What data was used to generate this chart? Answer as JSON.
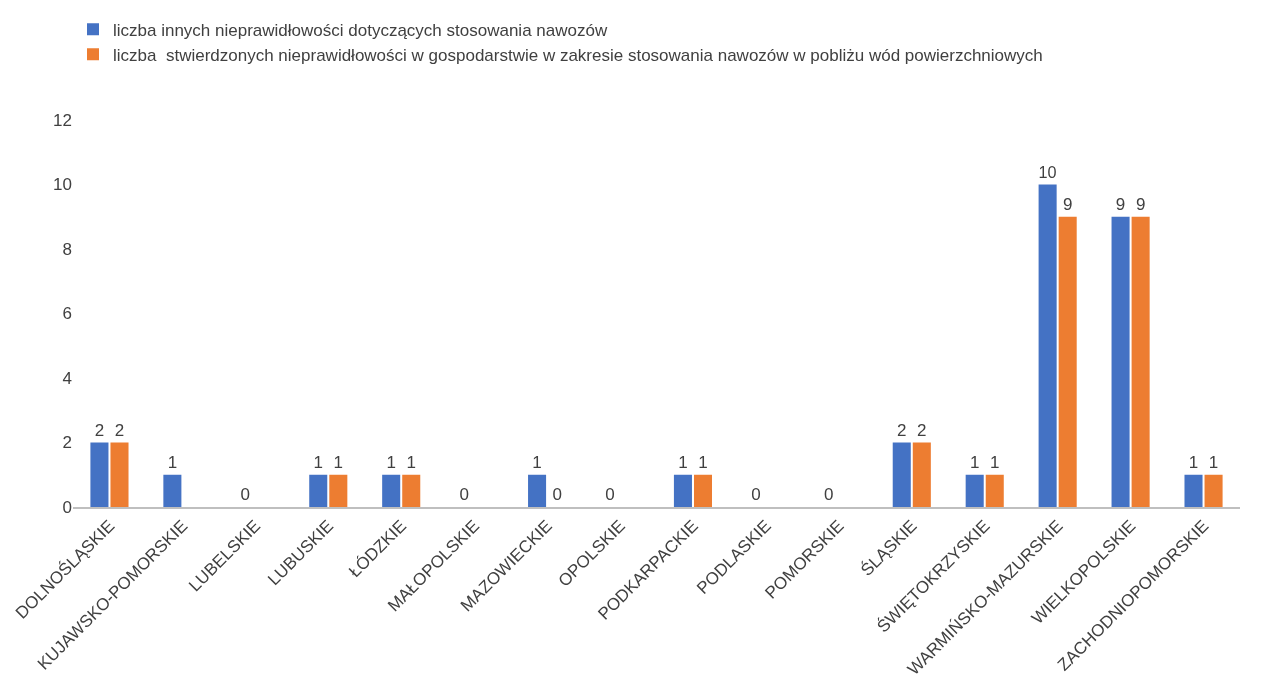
{
  "chart_data": {
    "type": "bar",
    "categories": [
      "DOLNOŚLĄSKIE",
      "KUJAWSKO-POMORSKIE",
      "LUBELSKIE",
      "LUBUSKIE",
      "ŁÓDZKIE",
      "MAŁOPOLSKIE",
      "MAZOWIECKIE",
      "OPOLSKIE",
      "PODKARPACKIE",
      "PODLASKIE",
      "POMORSKIE",
      "ŚLĄSKIE",
      "ŚWIĘTOKRZYSKIE",
      "WARMIŃSKO-MAZURSKIE",
      "WIELKOPOLSKIE",
      "ZACHODNIOPOMORSKIE"
    ],
    "series": [
      {
        "name": "liczba innych nieprawidłowości dotyczących stosowania nawozów",
        "color": "#4472c4",
        "values": [
          2,
          1,
          0,
          1,
          1,
          0,
          1,
          0,
          1,
          0,
          0,
          2,
          1,
          10,
          9,
          1
        ]
      },
      {
        "name": "liczba  stwierdzonych nieprawidłowości w gospodarstwie w zakresie stosowania nawozów w pobliżu wód powierzchniowych",
        "color": "#ed7d31",
        "values": [
          2,
          null,
          null,
          1,
          1,
          null,
          0,
          null,
          1,
          null,
          null,
          2,
          1,
          9,
          9,
          1
        ]
      }
    ],
    "ylim": [
      0,
      12
    ],
    "yticks": [
      0,
      2,
      4,
      6,
      8,
      10,
      12
    ],
    "data_labels": true,
    "grid": false,
    "legend": "top left"
  }
}
